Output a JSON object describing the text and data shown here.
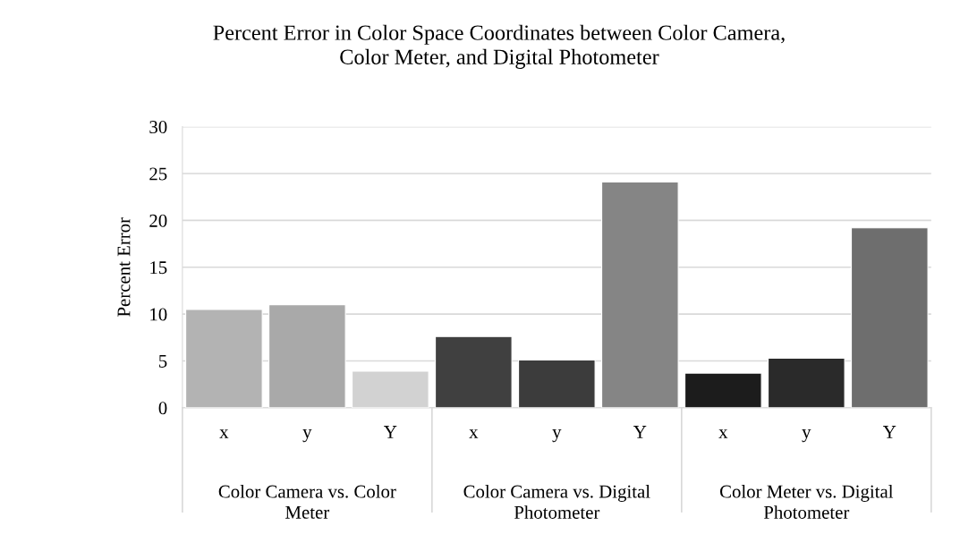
{
  "chart_data": {
    "type": "bar",
    "title": "Percent Error in Color Space Coordinates between Color Camera,\nColor Meter, and Digital Photometer",
    "ylabel": "Percent Error",
    "categories": [
      "x",
      "y",
      "Y",
      "x",
      "y",
      "Y",
      "x",
      "y",
      "Y"
    ],
    "values": [
      10.5,
      11.0,
      3.9,
      7.6,
      5.1,
      24.1,
      3.7,
      5.3,
      19.2
    ],
    "colors": [
      "#b3b3b3",
      "#a9a9a9",
      "#d2d2d2",
      "#404040",
      "#3c3c3c",
      "#858585",
      "#1c1c1c",
      "#2a2a2a",
      "#6e6e6e"
    ],
    "annotations": [
      "Color Camera vs. Color\nMeter",
      "Color Camera vs. Digital\nPhotometer",
      "Color Meter vs. Digital\nPhotometer"
    ],
    "ylim": [
      0,
      30
    ],
    "yticks": [
      0,
      5,
      10,
      15,
      20,
      25,
      30
    ],
    "grid": "y",
    "legend": false
  }
}
